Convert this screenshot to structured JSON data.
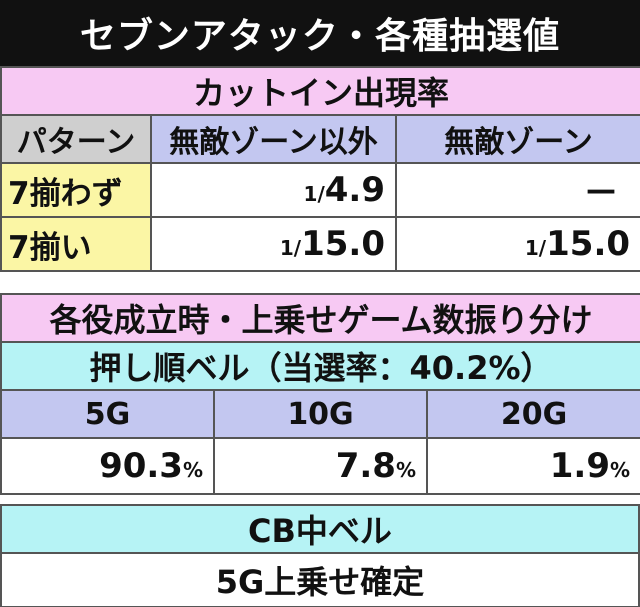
{
  "title": "セブンアタック・各種抽選値",
  "cutin": {
    "heading": "カットイン出現率",
    "columns": [
      "パターン",
      "無敵ゾーン以外",
      "無敵ゾーン"
    ],
    "rows": [
      {
        "label": "7揃わず",
        "normal_frac": "1/",
        "normal_val": "4.9",
        "muteki": "—"
      },
      {
        "label": "7揃い",
        "normal_frac": "1/",
        "normal_val": "15.0",
        "muteki_frac": "1/",
        "muteki_val": "15.0"
      }
    ]
  },
  "games": {
    "heading": "各役成立時・上乗せゲーム数振り分け",
    "subheading": "押し順ベル（当選率：40.2%）",
    "columns": [
      "5G",
      "10G",
      "20G"
    ],
    "values": [
      "90.3",
      "7.8",
      "1.9"
    ],
    "unit": "%"
  },
  "cb": {
    "heading": "CB中ベル",
    "result": "5G上乗せ確定"
  }
}
